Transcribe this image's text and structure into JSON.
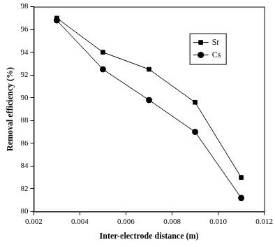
{
  "chart_data": {
    "type": "line",
    "x_label": "Inter-electrode distance (m)",
    "y_label": "Removal efficiency (%)",
    "x": [
      0.003,
      0.005,
      0.007,
      0.009,
      0.011
    ],
    "series": [
      {
        "name": "Sr",
        "color": "#000000",
        "marker": "square",
        "line_style": "solid",
        "values": [
          97.0,
          94.0,
          92.5,
          89.6,
          83.0
        ]
      },
      {
        "name": "Cs",
        "color": "#000000",
        "marker": "circle",
        "line_style": "solid",
        "values": [
          96.8,
          92.5,
          89.8,
          87.0,
          81.2
        ]
      }
    ],
    "xlim": [
      0.002,
      0.012
    ],
    "xticks": [
      0.002,
      0.004,
      0.006,
      0.008,
      {
        "value": 0.01,
        "label": "0.010"
      },
      0.012
    ],
    "ylim": [
      80,
      98
    ],
    "yticks": [
      80,
      82,
      84,
      86,
      88,
      90,
      92,
      94,
      96,
      98
    ],
    "grid": false,
    "legend": "upper right"
  }
}
